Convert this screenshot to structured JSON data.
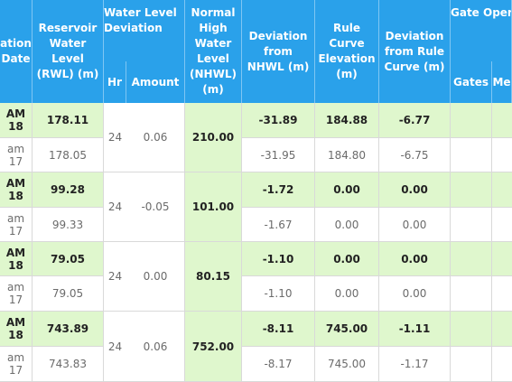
{
  "headers": {
    "date": [
      "ation",
      "Date"
    ],
    "rwl": [
      "Reservoir",
      "Water",
      "Level",
      "(RWL) (m)"
    ],
    "wl_dev": [
      "Water Level",
      "Deviation"
    ],
    "hr": "Hr",
    "amount": "Amount",
    "nhwl": [
      "Normal",
      "High",
      "Water",
      "Level",
      "(NHWL)",
      "(m)"
    ],
    "dev_nhwl": [
      "Deviation",
      "from",
      "NHWL (m)"
    ],
    "rule_curve": [
      "Rule",
      "Curve",
      "Elevation",
      "(m)"
    ],
    "dev_rule": [
      "Deviation",
      "from Rule",
      "Curve (m)"
    ],
    "gate_ops": "Gate Oper",
    "gates": "Gates",
    "me": "Me"
  },
  "groups": [
    {
      "current": {
        "date1": "AM",
        "date2": "18",
        "rwl": "178.11",
        "dev_nhwl": "-31.89",
        "rule": "184.88",
        "dev_rule": "-6.77"
      },
      "previous": {
        "date1": "am",
        "date2": "17",
        "rwl": "178.05",
        "dev_nhwl": "-31.95",
        "rule": "184.80",
        "dev_rule": "-6.75"
      },
      "hr": "24",
      "amount": "0.06",
      "nhwl": "210.00"
    },
    {
      "current": {
        "date1": "AM",
        "date2": "18",
        "rwl": "99.28",
        "dev_nhwl": "-1.72",
        "rule": "0.00",
        "dev_rule": "0.00"
      },
      "previous": {
        "date1": "am",
        "date2": "17",
        "rwl": "99.33",
        "dev_nhwl": "-1.67",
        "rule": "0.00",
        "dev_rule": "0.00"
      },
      "hr": "24",
      "amount": "-0.05",
      "nhwl": "101.00"
    },
    {
      "current": {
        "date1": "AM",
        "date2": "18",
        "rwl": "79.05",
        "dev_nhwl": "-1.10",
        "rule": "0.00",
        "dev_rule": "0.00"
      },
      "previous": {
        "date1": "am",
        "date2": "17",
        "rwl": "79.05",
        "dev_nhwl": "-1.10",
        "rule": "0.00",
        "dev_rule": "0.00"
      },
      "hr": "24",
      "amount": "0.00",
      "nhwl": "80.15"
    },
    {
      "current": {
        "date1": "AM",
        "date2": "18",
        "rwl": "743.89",
        "dev_nhwl": "-8.11",
        "rule": "745.00",
        "dev_rule": "-1.11"
      },
      "previous": {
        "date1": "am",
        "date2": "17",
        "rwl": "743.83",
        "dev_nhwl": "-8.17",
        "rule": "745.00",
        "dev_rule": "-1.17"
      },
      "hr": "24",
      "amount": "0.06",
      "nhwl": "752.00"
    }
  ],
  "colors": {
    "header": "#2aa1ea",
    "highlight": "#dff7cd"
  }
}
